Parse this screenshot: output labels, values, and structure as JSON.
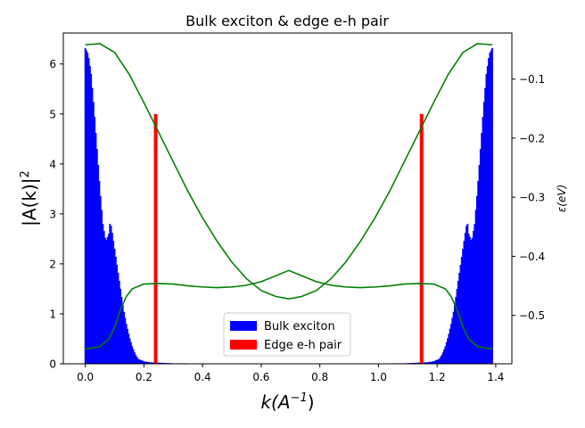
{
  "chart_data": {
    "type": "bar",
    "title": "Bulk exciton & edge e-h pair",
    "xlabel_base": "k(A",
    "xlabel_sup": "−1",
    "xlabel_close": ")",
    "ylabel_base": "|A(k)|",
    "ylabel_sup": "2",
    "y2label": "ε(eV)",
    "xlim": [
      -0.075,
      1.455
    ],
    "ylim": [
      0,
      6.62
    ],
    "y2lim": [
      -0.582,
      -0.022
    ],
    "xticks": [
      0.0,
      0.2,
      0.4,
      0.6,
      0.8,
      1.0,
      1.2,
      1.4
    ],
    "xtick_labels": [
      "0.0",
      "0.2",
      "0.4",
      "0.6",
      "0.8",
      "1.0",
      "1.2",
      "1.4"
    ],
    "yticks": [
      0,
      1,
      2,
      3,
      4,
      5,
      6
    ],
    "ytick_labels": [
      "0",
      "1",
      "2",
      "3",
      "4",
      "5",
      "6"
    ],
    "y2ticks": [
      -0.1,
      -0.2,
      -0.3,
      -0.4,
      -0.5
    ],
    "y2tick_labels": [
      "−0.1",
      "−0.2",
      "−0.3",
      "−0.4",
      "−0.5"
    ],
    "legend_position": "lower-center",
    "series": [
      {
        "name": "Bulk exciton",
        "kind": "bar-density",
        "color": "#0000ff",
        "points": [
          [
            0.0,
            6.32
          ],
          [
            0.01,
            6.2
          ],
          [
            0.02,
            5.8
          ],
          [
            0.03,
            5.1
          ],
          [
            0.04,
            4.3
          ],
          [
            0.05,
            3.5
          ],
          [
            0.06,
            2.8
          ],
          [
            0.07,
            2.45
          ],
          [
            0.08,
            2.6
          ],
          [
            0.085,
            2.85
          ],
          [
            0.09,
            2.7
          ],
          [
            0.1,
            2.3
          ],
          [
            0.11,
            1.9
          ],
          [
            0.12,
            1.5
          ],
          [
            0.13,
            1.1
          ],
          [
            0.14,
            0.8
          ],
          [
            0.15,
            0.55
          ],
          [
            0.16,
            0.35
          ],
          [
            0.17,
            0.2
          ],
          [
            0.18,
            0.1
          ],
          [
            0.2,
            0.05
          ],
          [
            0.22,
            0.03
          ],
          [
            0.26,
            0.02
          ],
          [
            0.3,
            0.01
          ],
          [
            0.345,
            0.01
          ]
        ],
        "mirror_about": 0.694
      },
      {
        "name": "Edge e-h pair",
        "kind": "spike",
        "color": "#ff0000",
        "x": [
          0.24,
          1.147
        ],
        "values": [
          5.0,
          5.0
        ]
      },
      {
        "kind": "line-right-axis",
        "color": "#008000",
        "x": [
          0.0,
          0.05,
          0.1,
          0.15,
          0.2,
          0.25,
          0.3,
          0.35,
          0.4,
          0.45,
          0.5,
          0.55,
          0.6,
          0.65,
          0.694
        ],
        "values": [
          -0.042,
          -0.04,
          -0.055,
          -0.092,
          -0.14,
          -0.19,
          -0.24,
          -0.29,
          -0.335,
          -0.375,
          -0.41,
          -0.438,
          -0.458,
          -0.468,
          -0.472
        ]
      },
      {
        "kind": "line-right-axis",
        "color": "#008000",
        "x": [
          0.0,
          0.05,
          0.08,
          0.1,
          0.12,
          0.14,
          0.16,
          0.2,
          0.25,
          0.3,
          0.35,
          0.4,
          0.45,
          0.5,
          0.55,
          0.6,
          0.65,
          0.694
        ],
        "values": [
          -0.557,
          -0.553,
          -0.54,
          -0.52,
          -0.49,
          -0.468,
          -0.455,
          -0.447,
          -0.446,
          -0.447,
          -0.45,
          -0.452,
          -0.453,
          -0.452,
          -0.449,
          -0.443,
          -0.433,
          -0.424
        ]
      }
    ]
  }
}
